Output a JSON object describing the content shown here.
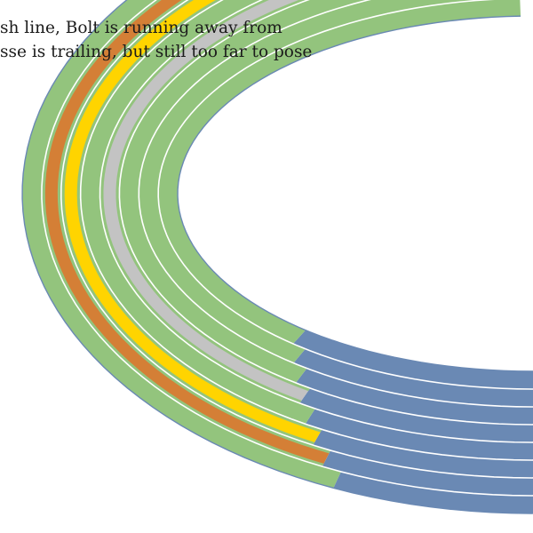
{
  "caption": {
    "line1": "sh line, Bolt is running away from",
    "line2": "sse is trailing, but still too far to pose"
  },
  "track": {
    "lanes": 8,
    "colors": {
      "curve_base": "#93C47D",
      "straight_base": "#6A89B4",
      "lane_line": "#FFFFFF",
      "outline": "#6A89B4",
      "highlight_orange": "#D47F36",
      "highlight_yellow": "#FFD400",
      "highlight_silver": "#C3C3C3"
    },
    "highlighted_lanes": [
      {
        "lane": 2,
        "color": "highlight_orange"
      },
      {
        "lane": 3,
        "color": "highlight_yellow"
      },
      {
        "lane": 5,
        "color": "highlight_silver"
      }
    ]
  }
}
